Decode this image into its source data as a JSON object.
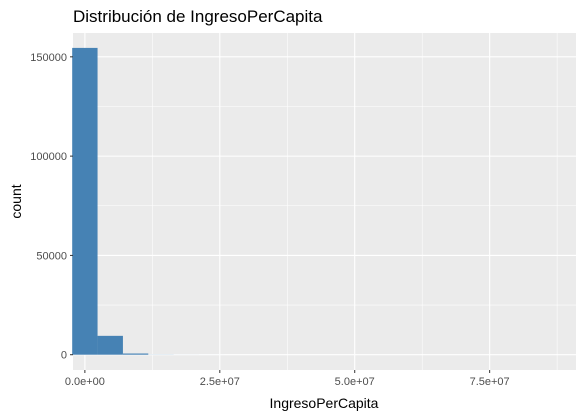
{
  "chart_data": {
    "type": "bar",
    "title": "Distribución de IngresoPerCapita",
    "xlabel": "IngresoPerCapita",
    "ylabel": "count",
    "xlim": [
      -2200000,
      91000000
    ],
    "ylim": [
      -7700,
      162000
    ],
    "x_ticks": [
      {
        "value": 0,
        "label": "0.0e+00"
      },
      {
        "value": 25000000,
        "label": "2.5e+07"
      },
      {
        "value": 50000000,
        "label": "5.0e+07"
      },
      {
        "value": 75000000,
        "label": "7.5e+07"
      }
    ],
    "y_ticks": [
      {
        "value": 0,
        "label": "0"
      },
      {
        "value": 50000,
        "label": "50000"
      },
      {
        "value": 100000,
        "label": "100000"
      },
      {
        "value": 150000,
        "label": "150000"
      }
    ],
    "bin_width": 4700000,
    "bins": [
      {
        "x0": -2350000,
        "x1": 2350000,
        "count": 154500
      },
      {
        "x0": 2350000,
        "x1": 7050000,
        "count": 9500
      },
      {
        "x0": 7050000,
        "x1": 11750000,
        "count": 600
      },
      {
        "x0": 11750000,
        "x1": 16450000,
        "count": 60
      },
      {
        "x0": 16450000,
        "x1": 21150000,
        "count": 20
      },
      {
        "x0": 21150000,
        "x1": 25850000,
        "count": 8
      },
      {
        "x0": 25850000,
        "x1": 30550000,
        "count": 4
      },
      {
        "x0": 30550000,
        "x1": 35250000,
        "count": 2
      },
      {
        "x0": 35250000,
        "x1": 39950000,
        "count": 1
      },
      {
        "x0": 39950000,
        "x1": 44650000,
        "count": 1
      },
      {
        "x0": 44650000,
        "x1": 49350000,
        "count": 0
      },
      {
        "x0": 49350000,
        "x1": 54050000,
        "count": 0
      },
      {
        "x0": 54050000,
        "x1": 58750000,
        "count": 0
      },
      {
        "x0": 58750000,
        "x1": 63450000,
        "count": 0
      },
      {
        "x0": 63450000,
        "x1": 68150000,
        "count": 0
      },
      {
        "x0": 68150000,
        "x1": 72850000,
        "count": 0
      },
      {
        "x0": 72850000,
        "x1": 77550000,
        "count": 0
      },
      {
        "x0": 77550000,
        "x1": 82250000,
        "count": 0
      },
      {
        "x0": 82250000,
        "x1": 86950000,
        "count": 1
      }
    ],
    "fill_color": "#4682b4",
    "panel_background": "#ebebeb",
    "grid_color": "#ffffff",
    "grid": true
  }
}
